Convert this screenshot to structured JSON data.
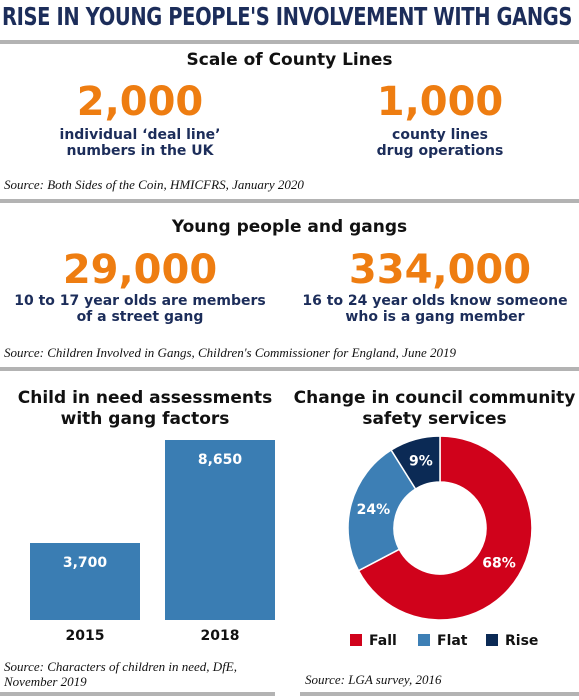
{
  "title": "RISE IN YOUNG PEOPLE'S INVOLVEMENT WITH GANGS",
  "sections": [
    {
      "heading": "Scale of County Lines",
      "stats": [
        {
          "value": "2,000",
          "text": "individual ‘deal line’\nnumbers in the UK"
        },
        {
          "value": "1,000",
          "text": "county lines\ndrug operations"
        }
      ],
      "source": "Source: Both Sides of the Coin, HMICFRS, January 2020"
    },
    {
      "heading": "Young people and gangs",
      "stats": [
        {
          "value": "29,000",
          "text": "10 to 17 year olds are members\nof a street gang"
        },
        {
          "value": "334,000",
          "text": "16 to 24 year olds know someone\nwho is a gang member"
        }
      ],
      "source": "Source: Children Involved in Gangs, Children's Commissioner for England, June 2019"
    }
  ],
  "chart_data": [
    {
      "type": "bar",
      "title": "Child in need assessments\nwith gang factors",
      "categories": [
        "2015",
        "2018"
      ],
      "values": [
        3700,
        8650
      ],
      "value_labels": [
        "3,700",
        "8,650"
      ],
      "color": "#3a7db3",
      "source": "Source: Characters of children in need, DfE,\nNovember 2019"
    },
    {
      "type": "pie",
      "title": "Change in council community\nsafety services",
      "categories": [
        "Fall",
        "Flat",
        "Rise"
      ],
      "values": [
        68,
        24,
        9
      ],
      "value_labels": [
        "68%",
        "24%",
        "9%"
      ],
      "colors": [
        "#d0021b",
        "#3d7fb5",
        "#0b2a55"
      ],
      "source": "Source: LGA survey, 2016"
    }
  ]
}
